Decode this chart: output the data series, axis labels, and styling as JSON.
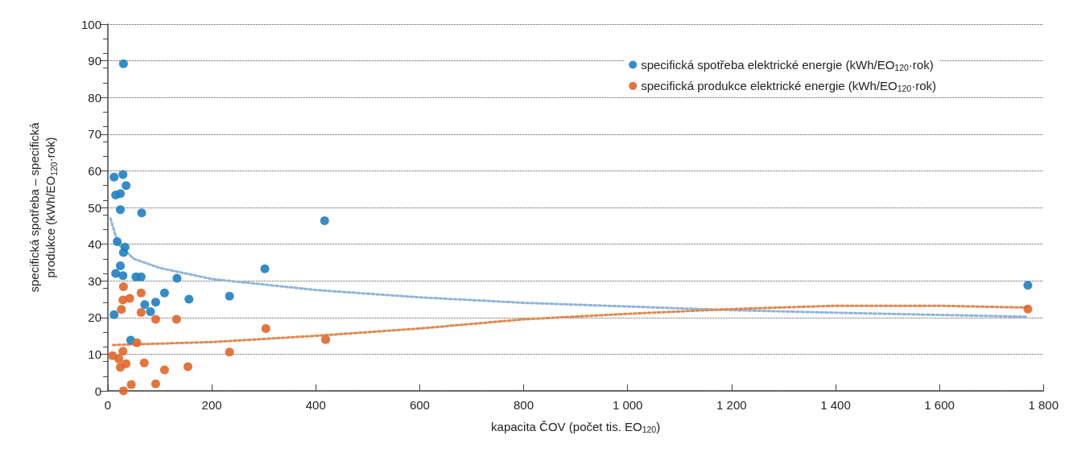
{
  "chart_data": {
    "type": "scatter",
    "xlabel": "kapacita ČOV (počet tis. EO$_{120}$)",
    "ylabel": "specifická spotřeba – specifická produkce (kWh/EO$_{120}$·rok)",
    "xlim": [
      0,
      1800
    ],
    "xticks": [
      0,
      200,
      400,
      600,
      800,
      {
        "value": 1000,
        "label": "1 000"
      },
      {
        "value": 1200,
        "label": "1 200"
      },
      {
        "value": 1400,
        "label": "1 400"
      },
      {
        "value": 1600,
        "label": "1 600"
      },
      {
        "value": 1800,
        "label": "1 800"
      }
    ],
    "ylim": [
      0,
      100
    ],
    "yticks": [
      0,
      10,
      20,
      30,
      40,
      50,
      60,
      70,
      80,
      90,
      100
    ],
    "grid": "y",
    "legend": "top right",
    "marker": "circle",
    "series": [
      {
        "name": "specifická spotřeba elektrické energie (kWh/EO$_{120}$·rok)",
        "color": "#1f7fc1",
        "x": [
          30,
          12,
          29,
          35,
          15,
          24,
          24,
          65,
          18,
          33,
          30,
          24,
          15,
          29,
          54,
          64,
          133,
          302,
          109,
          92,
          71,
          82,
          156,
          234,
          12,
          44,
          417,
          1770
        ],
        "values": [
          89.2,
          58.3,
          59,
          56,
          53.4,
          53.8,
          49.4,
          48.5,
          40.7,
          39.2,
          37.7,
          34.1,
          32,
          31.4,
          31.1,
          31.1,
          30.7,
          33.3,
          26.7,
          24.2,
          23.5,
          21.6,
          25,
          25.8,
          20.8,
          13.8,
          46.4,
          28.8
        ]
      },
      {
        "name": "specifická produkce elektrické energie (kWh/EO$_{120}$·rok)",
        "color": "#e0662a",
        "x": [
          30,
          64,
          29,
          26,
          64,
          92,
          132,
          304,
          56,
          29,
          234,
          21,
          35,
          24,
          70,
          109,
          154,
          45,
          92,
          30,
          9,
          419,
          1770,
          42
        ],
        "values": [
          28.4,
          26.7,
          24.8,
          22.2,
          21.4,
          19.5,
          19.5,
          17,
          13.1,
          10.8,
          10.6,
          8.7,
          7.4,
          6.4,
          7.6,
          5.7,
          6.6,
          1.7,
          1.9,
          0,
          9.6,
          14,
          22.3,
          25.2
        ]
      },
      {
        "type": "line",
        "color": "#8fb4d9",
        "line_style": "dotted",
        "marker": "none",
        "x": [
          5,
          20,
          50,
          100,
          200,
          400,
          600,
          800,
          1000,
          1200,
          1400,
          1600,
          1770
        ],
        "values": [
          47,
          40,
          36,
          33.5,
          30.5,
          27.5,
          25.5,
          24,
          23,
          22,
          21.3,
          20.7,
          20.2
        ]
      },
      {
        "type": "line",
        "color": "#e0884f",
        "line_style": "dotted",
        "marker": "none",
        "x": [
          10,
          200,
          400,
          600,
          800,
          1000,
          1200,
          1400,
          1600,
          1770
        ],
        "values": [
          12.5,
          13.3,
          15,
          17,
          19.5,
          21,
          22.3,
          23.2,
          23.2,
          22.7
        ]
      }
    ]
  }
}
